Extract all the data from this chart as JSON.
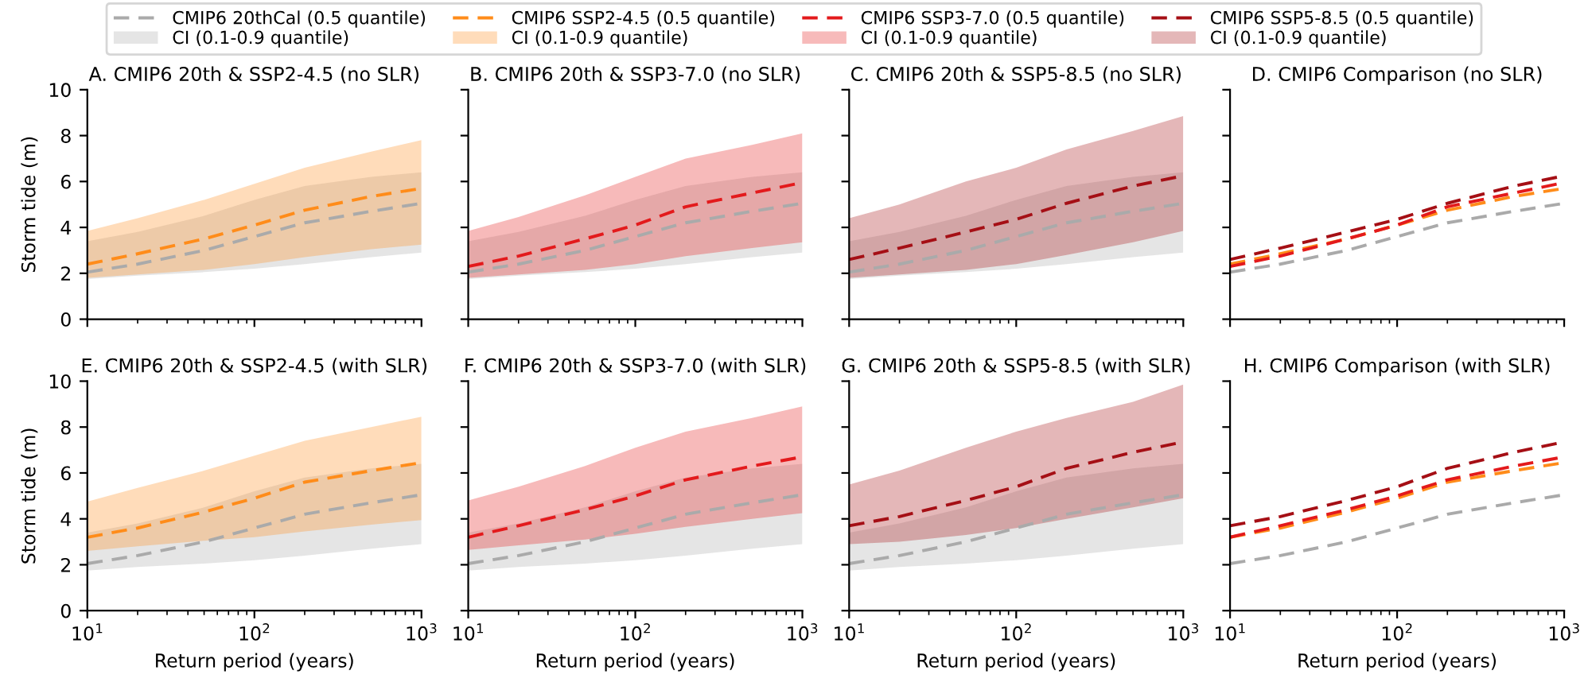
{
  "chart_data": [
    {
      "type": "line",
      "title": "A. CMIP6 20th & SSP2-4.5 (no SLR)",
      "ylabel": "Storm tide (m)",
      "xlim": [
        10,
        1000
      ],
      "ylim": [
        0,
        10
      ],
      "log": "x",
      "xticks": [
        {
          "value": 10,
          "label": null
        },
        {
          "value": 100,
          "label": null
        },
        {
          "value": 1000,
          "label": null
        }
      ],
      "yticks": [
        0,
        2,
        4,
        6,
        8,
        10
      ],
      "tick_labels": "y",
      "legend": "top",
      "line_style": "dashed",
      "x": [
        10,
        20,
        50,
        100,
        200,
        500,
        1000
      ],
      "series": [
        {
          "type": "line",
          "name": "CMIP6 20thCal (0.5 quantile)",
          "color": "#aaaaaa",
          "values": [
            2.05,
            2.4,
            3.0,
            3.6,
            4.2,
            4.7,
            5.05
          ],
          "lower": [
            1.75,
            1.9,
            2.05,
            2.2,
            2.4,
            2.7,
            2.9
          ],
          "upper": [
            3.4,
            3.8,
            4.5,
            5.2,
            5.8,
            6.2,
            6.4
          ]
        },
        {
          "type": "area",
          "name": "CI (0.1-0.9 quantile)",
          "color": "#aaaaaa",
          "values": [
            null,
            null,
            null,
            null,
            null,
            null,
            null
          ]
        },
        {
          "type": "line",
          "name": "CMIP6 SSP2-4.5 (0.5 quantile)",
          "color": "#ff8c1a",
          "values": [
            2.4,
            2.85,
            3.5,
            4.1,
            4.75,
            5.35,
            5.7
          ],
          "lower": [
            1.8,
            1.95,
            2.15,
            2.4,
            2.7,
            3.05,
            3.25
          ],
          "upper": [
            3.85,
            4.4,
            5.2,
            5.9,
            6.6,
            7.3,
            7.8
          ]
        },
        {
          "type": "area",
          "name": "CI (0.1-0.9 quantile)",
          "color": "#ff8c1a",
          "values": [
            null,
            null,
            null,
            null,
            null,
            null,
            null
          ]
        }
      ]
    },
    {
      "type": "line",
      "title": "B. CMIP6 20th & SSP3-7.0 (no SLR)",
      "xlim": [
        10,
        1000
      ],
      "ylim": [
        0,
        10
      ],
      "log": "x",
      "xticks": [
        {
          "value": 10,
          "label": null
        },
        {
          "value": 100,
          "label": null
        },
        {
          "value": 1000,
          "label": null
        }
      ],
      "yticks": [
        0,
        2,
        4,
        6,
        8,
        10
      ],
      "tick_labels": false,
      "legend": "top",
      "line_style": "dashed",
      "x": [
        10,
        20,
        50,
        100,
        200,
        500,
        1000
      ],
      "series": [
        {
          "type": "line",
          "color": "#aaaaaa",
          "values": [
            2.05,
            2.4,
            3.0,
            3.6,
            4.2,
            4.7,
            5.05
          ],
          "lower": [
            1.75,
            1.9,
            2.05,
            2.2,
            2.4,
            2.7,
            2.9
          ],
          "upper": [
            3.4,
            3.8,
            4.5,
            5.2,
            5.8,
            6.2,
            6.4
          ]
        },
        {
          "type": "line",
          "name": "CMIP6 SSP3-7.0 (0.5 quantile)",
          "color": "#e31a1c",
          "values": [
            2.3,
            2.75,
            3.5,
            4.1,
            4.9,
            5.5,
            5.95
          ],
          "lower": [
            1.8,
            1.95,
            2.15,
            2.4,
            2.75,
            3.1,
            3.35
          ],
          "upper": [
            3.85,
            4.45,
            5.4,
            6.2,
            7.0,
            7.6,
            8.1
          ]
        },
        {
          "type": "area",
          "name": "CI (0.1-0.9 quantile)",
          "color": "#e31a1c",
          "values": [
            null,
            null,
            null,
            null,
            null,
            null,
            null
          ]
        }
      ]
    },
    {
      "type": "line",
      "title": "C. CMIP6 20th & SSP5-8.5 (no SLR)",
      "xlim": [
        10,
        1000
      ],
      "ylim": [
        0,
        10
      ],
      "log": "x",
      "xticks": [
        {
          "value": 10,
          "label": null
        },
        {
          "value": 100,
          "label": null
        },
        {
          "value": 1000,
          "label": null
        }
      ],
      "yticks": [
        0,
        2,
        4,
        6,
        8,
        10
      ],
      "tick_labels": false,
      "legend": "top",
      "line_style": "dashed",
      "x": [
        10,
        20,
        50,
        100,
        200,
        500,
        1000
      ],
      "series": [
        {
          "type": "line",
          "color": "#aaaaaa",
          "values": [
            2.05,
            2.4,
            3.0,
            3.6,
            4.2,
            4.7,
            5.05
          ],
          "lower": [
            1.75,
            1.9,
            2.05,
            2.2,
            2.4,
            2.7,
            2.9
          ],
          "upper": [
            3.4,
            3.8,
            4.5,
            5.2,
            5.8,
            6.2,
            6.4
          ]
        },
        {
          "type": "line",
          "name": "CMIP6 SSP5-8.5 (0.5 quantile)",
          "color": "#a50f15",
          "values": [
            2.6,
            3.1,
            3.8,
            4.35,
            5.05,
            5.8,
            6.25
          ],
          "lower": [
            1.8,
            1.95,
            2.15,
            2.4,
            2.8,
            3.35,
            3.85
          ],
          "upper": [
            4.4,
            5.0,
            6.0,
            6.6,
            7.4,
            8.2,
            8.85
          ]
        },
        {
          "type": "area",
          "name": "CI (0.1-0.9 quantile)",
          "color": "#a50f15",
          "values": [
            null,
            null,
            null,
            null,
            null,
            null,
            null
          ]
        }
      ]
    },
    {
      "type": "line",
      "title": "D. CMIP6 Comparison (no SLR)",
      "xlim": [
        10,
        1000
      ],
      "ylim": [
        0,
        10
      ],
      "log": "x",
      "xticks": [
        {
          "value": 10,
          "label": null
        },
        {
          "value": 100,
          "label": null
        },
        {
          "value": 1000,
          "label": null
        }
      ],
      "yticks": [
        0,
        2,
        4,
        6,
        8,
        10
      ],
      "tick_labels": false,
      "line_style": "dashed",
      "x": [
        10,
        20,
        50,
        100,
        200,
        500,
        1000
      ],
      "series": [
        {
          "type": "line",
          "color": "#aaaaaa",
          "values": [
            2.05,
            2.4,
            3.0,
            3.6,
            4.2,
            4.7,
            5.05
          ]
        },
        {
          "type": "line",
          "color": "#ff8c1a",
          "values": [
            2.4,
            2.85,
            3.5,
            4.1,
            4.75,
            5.35,
            5.7
          ]
        },
        {
          "type": "line",
          "color": "#e31a1c",
          "values": [
            2.3,
            2.75,
            3.5,
            4.1,
            4.9,
            5.5,
            5.95
          ]
        },
        {
          "type": "line",
          "color": "#a50f15",
          "values": [
            2.6,
            3.1,
            3.8,
            4.35,
            5.05,
            5.8,
            6.25
          ]
        }
      ]
    },
    {
      "type": "line",
      "title": "E. CMIP6 20th & SSP2-4.5 (with SLR)",
      "xlabel": "Return period (years)",
      "ylabel": "Storm tide (m)",
      "xlim": [
        10,
        1000
      ],
      "ylim": [
        0,
        10
      ],
      "log": "x",
      "xticks": [
        {
          "value": 10,
          "label": "10$^{1}$"
        },
        {
          "value": 100,
          "label": "10$^{2}$"
        },
        {
          "value": 1000,
          "label": "10$^{3}$"
        }
      ],
      "yticks": [
        0,
        2,
        4,
        6,
        8,
        10
      ],
      "line_style": "dashed",
      "x": [
        10,
        20,
        50,
        100,
        200,
        500,
        1000
      ],
      "series": [
        {
          "type": "line",
          "color": "#aaaaaa",
          "values": [
            2.05,
            2.4,
            3.0,
            3.6,
            4.2,
            4.7,
            5.05
          ],
          "lower": [
            1.75,
            1.9,
            2.05,
            2.2,
            2.4,
            2.7,
            2.9
          ],
          "upper": [
            3.4,
            3.8,
            4.5,
            5.2,
            5.8,
            6.2,
            6.4
          ]
        },
        {
          "type": "line",
          "color": "#ff8c1a",
          "values": [
            3.2,
            3.6,
            4.3,
            4.9,
            5.6,
            6.1,
            6.45
          ],
          "lower": [
            2.6,
            2.8,
            3.05,
            3.2,
            3.45,
            3.75,
            3.95
          ],
          "upper": [
            4.75,
            5.35,
            6.1,
            6.75,
            7.4,
            8.0,
            8.45
          ]
        }
      ]
    },
    {
      "type": "line",
      "title": "F. CMIP6 20th & SSP3-7.0 (with SLR)",
      "xlabel": "Return period (years)",
      "xlim": [
        10,
        1000
      ],
      "ylim": [
        0,
        10
      ],
      "log": "x",
      "xticks": [
        {
          "value": 10,
          "label": "10$^{1}$"
        },
        {
          "value": 100,
          "label": "10$^{2}$"
        },
        {
          "value": 1000,
          "label": "10$^{3}$"
        }
      ],
      "yticks": [
        0,
        2,
        4,
        6,
        8,
        10
      ],
      "tick_labels": "x",
      "line_style": "dashed",
      "x": [
        10,
        20,
        50,
        100,
        200,
        500,
        1000
      ],
      "series": [
        {
          "type": "line",
          "color": "#aaaaaa",
          "values": [
            2.05,
            2.4,
            3.0,
            3.6,
            4.2,
            4.7,
            5.05
          ],
          "lower": [
            1.75,
            1.9,
            2.05,
            2.2,
            2.4,
            2.7,
            2.9
          ],
          "upper": [
            3.4,
            3.8,
            4.5,
            5.2,
            5.8,
            6.2,
            6.4
          ]
        },
        {
          "type": "line",
          "color": "#e31a1c",
          "values": [
            3.2,
            3.7,
            4.4,
            5.0,
            5.7,
            6.3,
            6.7
          ],
          "lower": [
            2.65,
            2.85,
            3.1,
            3.35,
            3.65,
            4.0,
            4.25
          ],
          "upper": [
            4.8,
            5.4,
            6.3,
            7.1,
            7.8,
            8.4,
            8.9
          ]
        }
      ]
    },
    {
      "type": "line",
      "title": "G. CMIP6 20th & SSP5-8.5 (with SLR)",
      "xlabel": "Return period (years)",
      "xlim": [
        10,
        1000
      ],
      "ylim": [
        0,
        10
      ],
      "log": "x",
      "xticks": [
        {
          "value": 10,
          "label": "10$^{1}$"
        },
        {
          "value": 100,
          "label": "10$^{2}$"
        },
        {
          "value": 1000,
          "label": "10$^{3}$"
        }
      ],
      "yticks": [
        0,
        2,
        4,
        6,
        8,
        10
      ],
      "tick_labels": "x",
      "line_style": "dashed",
      "x": [
        10,
        20,
        50,
        100,
        200,
        500,
        1000
      ],
      "series": [
        {
          "type": "line",
          "color": "#aaaaaa",
          "values": [
            2.05,
            2.4,
            3.0,
            3.6,
            4.2,
            4.7,
            5.05
          ],
          "lower": [
            1.75,
            1.9,
            2.05,
            2.2,
            2.4,
            2.7,
            2.9
          ],
          "upper": [
            3.4,
            3.8,
            4.5,
            5.2,
            5.8,
            6.2,
            6.4
          ]
        },
        {
          "type": "line",
          "color": "#a50f15",
          "values": [
            3.7,
            4.1,
            4.8,
            5.4,
            6.2,
            6.9,
            7.35
          ],
          "lower": [
            2.9,
            3.0,
            3.3,
            3.6,
            4.0,
            4.5,
            4.9
          ],
          "upper": [
            5.5,
            6.1,
            7.1,
            7.8,
            8.4,
            9.1,
            9.85
          ]
        }
      ]
    },
    {
      "type": "line",
      "title": "H. CMIP6 Comparison (with SLR)",
      "xlabel": "Return period (years)",
      "xlim": [
        10,
        1000
      ],
      "ylim": [
        0,
        10
      ],
      "log": "x",
      "xticks": [
        {
          "value": 10,
          "label": "10$^{1}$"
        },
        {
          "value": 100,
          "label": "10$^{2}$"
        },
        {
          "value": 1000,
          "label": "10$^{3}$"
        }
      ],
      "yticks": [
        0,
        2,
        4,
        6,
        8,
        10
      ],
      "tick_labels": "x",
      "line_style": "dashed",
      "x": [
        10,
        20,
        50,
        100,
        200,
        500,
        1000
      ],
      "series": [
        {
          "type": "line",
          "color": "#aaaaaa",
          "values": [
            2.05,
            2.4,
            3.0,
            3.6,
            4.2,
            4.7,
            5.05
          ]
        },
        {
          "type": "line",
          "color": "#ff8c1a",
          "values": [
            3.2,
            3.6,
            4.3,
            4.9,
            5.6,
            6.1,
            6.45
          ]
        },
        {
          "type": "line",
          "color": "#e31a1c",
          "values": [
            3.2,
            3.7,
            4.4,
            5.0,
            5.7,
            6.3,
            6.7
          ]
        },
        {
          "type": "line",
          "color": "#a50f15",
          "values": [
            3.7,
            4.1,
            4.8,
            5.4,
            6.2,
            6.9,
            7.35
          ]
        }
      ]
    }
  ]
}
